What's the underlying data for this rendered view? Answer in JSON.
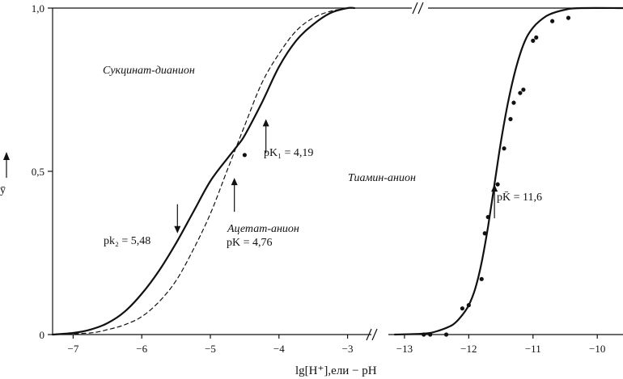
{
  "chart_data": {
    "type": "line",
    "xlabel": "lg[H⁺],ели − pH",
    "ylabel": "ȳ",
    "ylim": [
      0,
      1
    ],
    "y_ticks": [
      "0",
      "0,5",
      "1,0"
    ],
    "panels": [
      {
        "name": "left",
        "xlim": [
          -7.3,
          -2.7
        ],
        "x_ticks": [
          "−7",
          "−6",
          "−5",
          "−4",
          "−3"
        ],
        "x_tick_values": [
          -7,
          -6,
          -5,
          -4,
          -3
        ]
      },
      {
        "name": "right",
        "xlim": [
          -13.15,
          -9.6
        ],
        "x_ticks": [
          "−13",
          "−12",
          "−11",
          "−10"
        ],
        "x_tick_values": [
          -13,
          -12,
          -11,
          -10
        ]
      }
    ],
    "series": [
      {
        "name": "Сукцинат-дианион",
        "style": "solid",
        "panel": "left",
        "x": [
          -7.3,
          -7.0,
          -6.75,
          -6.5,
          -6.25,
          -6.0,
          -5.75,
          -5.5,
          -5.25,
          -5.0,
          -4.75,
          -4.6,
          -4.5,
          -4.25,
          -4.0,
          -3.75,
          -3.5,
          -3.25,
          -3.0,
          -2.9
        ],
        "y": [
          0.0,
          0.005,
          0.015,
          0.035,
          0.07,
          0.125,
          0.195,
          0.28,
          0.375,
          0.47,
          0.54,
          0.58,
          0.61,
          0.71,
          0.82,
          0.9,
          0.95,
          0.985,
          1.0,
          1.0
        ]
      },
      {
        "name": "Ацетат-анион",
        "style": "dashed",
        "panel": "left",
        "x": [
          -7.3,
          -6.75,
          -6.5,
          -6.25,
          -6.0,
          -5.75,
          -5.5,
          -5.25,
          -5.0,
          -4.76,
          -4.5,
          -4.25,
          -4.0,
          -3.75,
          -3.5,
          -3.25,
          -3.0
        ],
        "y": [
          0.0,
          0.005,
          0.015,
          0.03,
          0.055,
          0.1,
          0.165,
          0.26,
          0.37,
          0.5,
          0.64,
          0.77,
          0.86,
          0.93,
          0.97,
          0.99,
          1.0
        ]
      },
      {
        "name": "Тиамин-анион",
        "style": "solid",
        "panel": "right",
        "x": [
          -13.15,
          -12.7,
          -12.5,
          -12.25,
          -12.1,
          -12.0,
          -11.9,
          -11.8,
          -11.7,
          -11.6,
          -11.5,
          -11.4,
          -11.3,
          -11.2,
          -11.1,
          -11.0,
          -10.9,
          -10.75,
          -10.5,
          -10.25,
          -9.6
        ],
        "y": [
          0.0,
          0.003,
          0.01,
          0.03,
          0.06,
          0.09,
          0.14,
          0.22,
          0.33,
          0.46,
          0.59,
          0.7,
          0.79,
          0.86,
          0.91,
          0.94,
          0.96,
          0.98,
          0.995,
          1.0,
          1.0
        ]
      },
      {
        "name": "Тиамин-анион (точки)",
        "style": "points",
        "panel": "right",
        "x": [
          -12.7,
          -12.6,
          -12.35,
          -12.1,
          -12.0,
          -11.8,
          -11.75,
          -11.7,
          -11.55,
          -11.45,
          -11.35,
          -11.3,
          -11.2,
          -11.15,
          -11.0,
          -10.95,
          -10.7,
          -10.45
        ],
        "y": [
          0.0,
          0.0,
          0.0,
          0.08,
          0.09,
          0.17,
          0.31,
          0.36,
          0.46,
          0.57,
          0.66,
          0.71,
          0.74,
          0.75,
          0.9,
          0.91,
          0.96,
          0.97
        ]
      },
      {
        "name": "Сукцинат (точка)",
        "style": "points",
        "panel": "left",
        "x": [
          -4.5
        ],
        "y": [
          0.55
        ]
      }
    ],
    "annotations": [
      {
        "id": "succinate_label",
        "text": "Сукцинат-дианион",
        "italic": true
      },
      {
        "id": "pk1_label",
        "text": "pK₁ = 4,19",
        "arrow": "up",
        "panel": "left",
        "x": -4.19,
        "y": 0.66
      },
      {
        "id": "acetate_label",
        "text": "Ацетат-анион",
        "italic": true
      },
      {
        "id": "pk_label",
        "text": "pK = 4,76",
        "arrow": "up",
        "panel": "left",
        "x": -4.65,
        "y": 0.48
      },
      {
        "id": "pk2_label",
        "text": "pk₂ = 5,48",
        "arrow": "down",
        "panel": "left",
        "x": -5.48,
        "y": 0.31
      },
      {
        "id": "thiamine_label",
        "text": "Тиамин-анион",
        "italic": true
      },
      {
        "id": "pkt_label",
        "text": "pK̄ = 11,6",
        "arrow": "up",
        "panel": "right",
        "x": -11.6,
        "y": 0.46
      }
    ]
  }
}
